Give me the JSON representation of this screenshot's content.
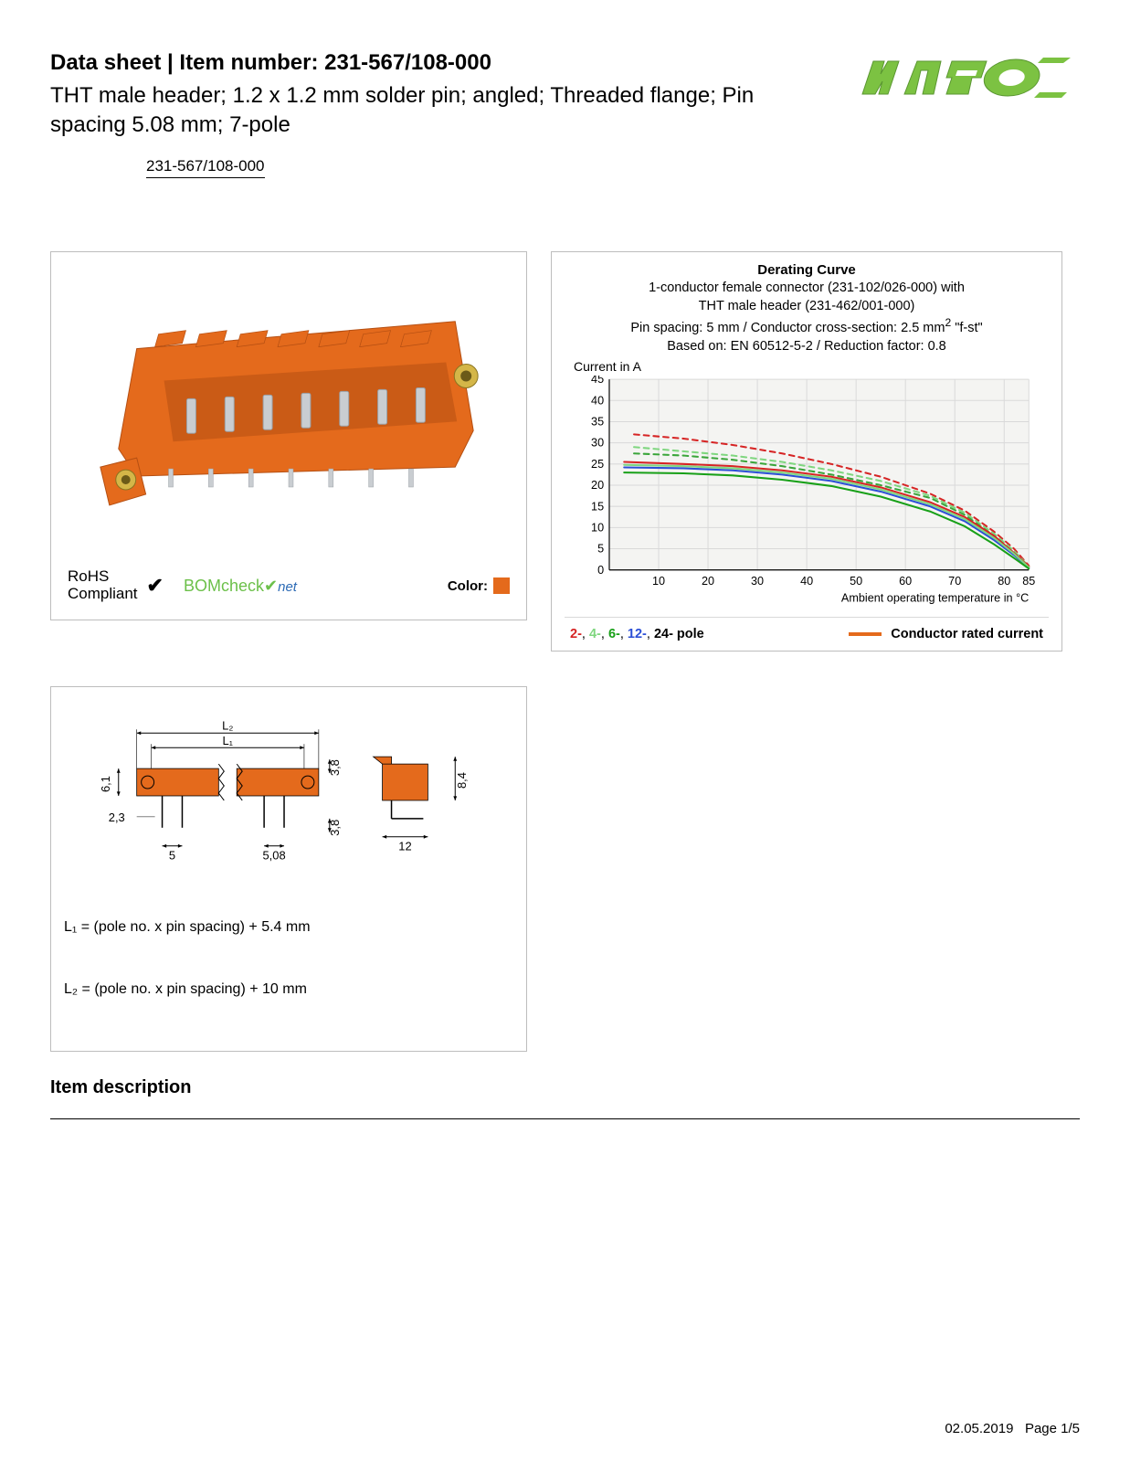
{
  "header": {
    "title_prefix": "Data sheet  |  Item number: ",
    "item_number": "231-567/108-000",
    "subtitle": "THT male header; 1.2 x 1.2 mm solder pin; angled; Threaded flange; Pin spacing 5.08 mm; 7-pole",
    "part_link": "231-567/108-000"
  },
  "logo": {
    "text": "WAGO",
    "fill": "#7cc242",
    "shadow": "#5a9631"
  },
  "product": {
    "body_color": "#e46a1c",
    "body_shadow": "#b54f12",
    "pin_color": "#c9cdd1",
    "brass_color": "#d4b648"
  },
  "rohs": {
    "line1": "RoHS",
    "line2": "Compliant",
    "bom_label": "BOM",
    "bom_check": "check",
    "bom_net": "net",
    "color_label": "Color:",
    "color_hex": "#e46a1c"
  },
  "chart": {
    "title": "Derating Curve",
    "sub1": "1-conductor female connector (231-102/026-000) with",
    "sub2": "THT male header (231-462/001-000)",
    "sub3_a": "Pin spacing: 5 mm / Conductor cross-section: 2.5 mm",
    "sub3_b": " \"f-st\"",
    "sub4": "Based on: EN 60512-5-2 / Reduction factor: 0.8",
    "ylabel": "Current in A",
    "xlabel": "Ambient operating temperature in °C",
    "xlim": [
      0,
      85
    ],
    "ylim": [
      0,
      45
    ],
    "yticks": [
      0,
      5,
      10,
      15,
      20,
      25,
      30,
      35,
      40,
      45
    ],
    "xticks": [
      10,
      20,
      30,
      40,
      50,
      60,
      70,
      80,
      85
    ],
    "plot_bg": "#f4f4f2",
    "grid_color": "#e0e0e0",
    "series": [
      {
        "name": "2-pole-dash",
        "color": "#d62424",
        "dash": true,
        "points": [
          [
            5,
            32
          ],
          [
            15,
            31
          ],
          [
            25,
            29.5
          ],
          [
            35,
            27.5
          ],
          [
            45,
            25
          ],
          [
            55,
            22
          ],
          [
            65,
            18
          ],
          [
            72,
            14
          ],
          [
            78,
            9
          ],
          [
            82,
            5
          ],
          [
            85,
            1
          ]
        ]
      },
      {
        "name": "4-pole-dash",
        "color": "#7fd67f",
        "dash": true,
        "points": [
          [
            5,
            29
          ],
          [
            15,
            28
          ],
          [
            25,
            27
          ],
          [
            35,
            25.5
          ],
          [
            45,
            23.5
          ],
          [
            55,
            21
          ],
          [
            65,
            17.5
          ],
          [
            72,
            13.5
          ],
          [
            78,
            8.5
          ],
          [
            82,
            4.5
          ],
          [
            85,
            0.8
          ]
        ]
      },
      {
        "name": "6-pole-dash",
        "color": "#3aa53a",
        "dash": true,
        "points": [
          [
            5,
            27.5
          ],
          [
            15,
            27
          ],
          [
            25,
            26
          ],
          [
            35,
            24.5
          ],
          [
            45,
            22.5
          ],
          [
            55,
            20
          ],
          [
            65,
            17
          ],
          [
            72,
            13
          ],
          [
            78,
            8
          ],
          [
            82,
            4
          ],
          [
            85,
            0.6
          ]
        ]
      },
      {
        "name": "2-pole",
        "color": "#d62424",
        "dash": false,
        "points": [
          [
            3,
            25.5
          ],
          [
            15,
            25
          ],
          [
            25,
            24.5
          ],
          [
            35,
            23.5
          ],
          [
            45,
            22
          ],
          [
            55,
            19.5
          ],
          [
            65,
            16
          ],
          [
            72,
            12.5
          ],
          [
            78,
            8
          ],
          [
            82,
            4
          ],
          [
            85,
            0.8
          ]
        ]
      },
      {
        "name": "12-pole",
        "color": "#2b4fd6",
        "dash": false,
        "points": [
          [
            3,
            24.2
          ],
          [
            15,
            24
          ],
          [
            25,
            23.5
          ],
          [
            35,
            22.5
          ],
          [
            45,
            21
          ],
          [
            55,
            18.5
          ],
          [
            65,
            15
          ],
          [
            72,
            11.5
          ],
          [
            78,
            7
          ],
          [
            82,
            3.5
          ],
          [
            85,
            0.5
          ]
        ]
      },
      {
        "name": "6-pole",
        "color": "#7fd67f",
        "dash": false,
        "points": [
          [
            3,
            24.8
          ],
          [
            15,
            24.5
          ],
          [
            25,
            24
          ],
          [
            35,
            23
          ],
          [
            45,
            21.5
          ],
          [
            55,
            19
          ],
          [
            65,
            15.5
          ],
          [
            72,
            12
          ],
          [
            78,
            7.5
          ],
          [
            82,
            3.8
          ],
          [
            85,
            0.6
          ]
        ]
      },
      {
        "name": "24-pole",
        "color": "#18a018",
        "dash": false,
        "points": [
          [
            3,
            23
          ],
          [
            15,
            22.8
          ],
          [
            25,
            22.3
          ],
          [
            35,
            21.3
          ],
          [
            45,
            19.8
          ],
          [
            55,
            17.3
          ],
          [
            65,
            13.8
          ],
          [
            72,
            10.3
          ],
          [
            78,
            6
          ],
          [
            82,
            2.8
          ],
          [
            85,
            0.3
          ]
        ]
      }
    ],
    "legend_poles": [
      {
        "label": "2-",
        "color": "#d62424"
      },
      {
        "label": "4-",
        "color": "#7fd67f"
      },
      {
        "label": "6-",
        "color": "#18a018"
      },
      {
        "label": "12-",
        "color": "#2b4fd6"
      },
      {
        "label": "24-",
        "color": "#000000"
      }
    ],
    "legend_poles_suffix": " pole",
    "legend_right": "Conductor rated current",
    "legend_swatch_color": "#e46a1c"
  },
  "dims": {
    "labels": {
      "L2": "L₂",
      "L1": "L₁",
      "h61": "6,1",
      "w23": "2,3",
      "p5": "5",
      "p508": "5,08",
      "v38a": "3,8",
      "v38b": "3,8",
      "h84": "8,4",
      "w12": "12"
    },
    "body_color": "#e46a1c",
    "formula1": "L₁ = (pole no. x pin spacing) + 5.4 mm",
    "formula2": "L₂ = (pole no. x pin spacing) + 10 mm"
  },
  "section_heading": "Item description",
  "footer": {
    "date": "02.05.2019",
    "page": "Page 1/5"
  }
}
